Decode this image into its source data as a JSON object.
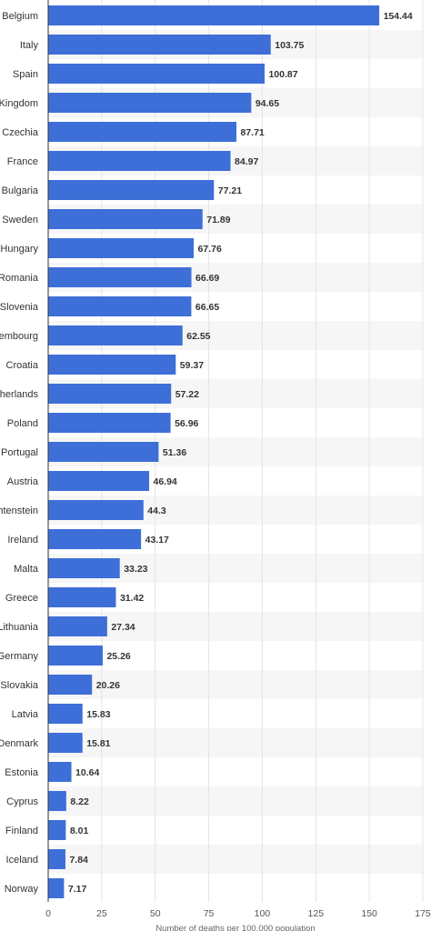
{
  "chart_data": {
    "type": "bar",
    "orientation": "horizontal",
    "categories": [
      "Belgium",
      "Italy",
      "Spain",
      "Kingdom",
      "Czechia",
      "France",
      "Bulgaria",
      "Sweden",
      "Hungary",
      "Romania",
      "Slovenia",
      "xembourg",
      "Croatia",
      "therlands",
      "Poland",
      "Portugal",
      "Austria",
      "chtenstein",
      "Ireland",
      "Malta",
      "Greece",
      "Lithuania",
      "Germany",
      "Slovakia",
      "Latvia",
      "Denmark",
      "Estonia",
      "Cyprus",
      "Finland",
      "Iceland",
      "Norway"
    ],
    "values": [
      154.44,
      103.75,
      100.87,
      94.65,
      87.71,
      84.97,
      77.21,
      71.89,
      67.76,
      66.69,
      66.65,
      62.55,
      59.37,
      57.22,
      56.96,
      51.36,
      46.94,
      44.3,
      43.17,
      33.23,
      31.42,
      27.34,
      25.26,
      20.26,
      15.83,
      15.81,
      10.64,
      8.22,
      8.01,
      7.84,
      7.17
    ],
    "xlabel": "Number of deaths per 100,000 population",
    "ylabel": "",
    "title": "",
    "xlim": [
      0,
      175
    ],
    "xticks": [
      0,
      25,
      50,
      75,
      100,
      125,
      150,
      175
    ],
    "grid": true,
    "legend": "none",
    "colors": {
      "bar": "#3e6fd8",
      "band": "#f6f6f6",
      "grid": "#e4e4e4",
      "axis": "#333333"
    }
  }
}
